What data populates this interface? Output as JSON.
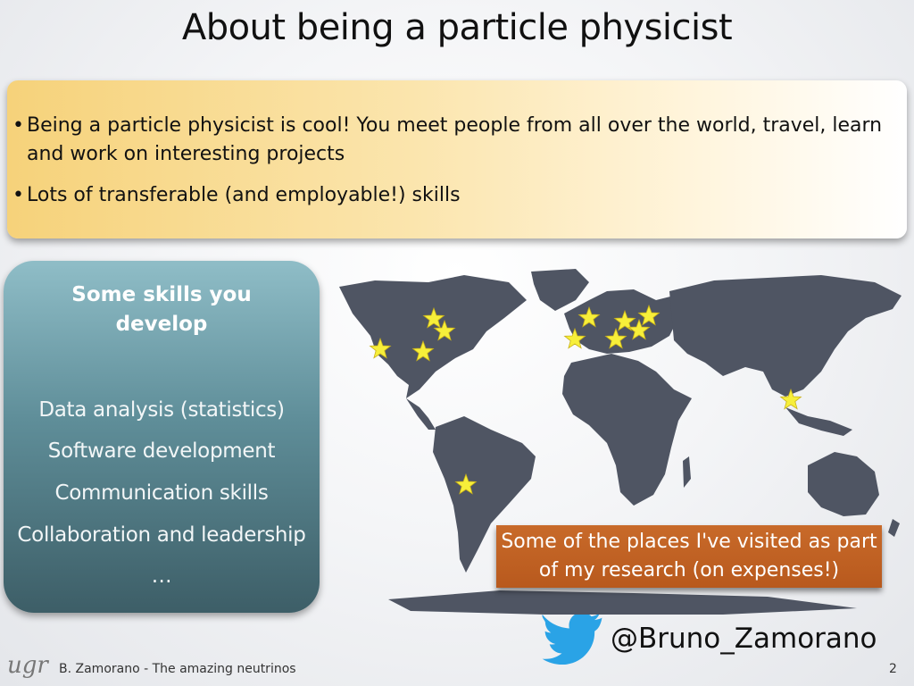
{
  "slide": {
    "title": "About being a particle physicist",
    "bullets": [
      "Being a particle physicist is cool! You meet people from all over the world, travel, learn and work on interesting projects",
      "Lots of transferable (and employable!) skills"
    ],
    "skills_box": {
      "heading": "Some skills you develop",
      "items": [
        "Data analysis (statistics)",
        "Software development",
        "Communication skills",
        "Collaboration and leadership",
        "…"
      ]
    },
    "map": {
      "caption": "Some of the places I've visited as part of my research (on expenses!)",
      "marker_icon": "star-icon",
      "marker_color": "#f7ef3a",
      "land_color": "#4f5563"
    },
    "twitter": {
      "icon": "twitter-bird-icon",
      "color": "#2aa3e6",
      "handle": "@Bruno_Zamorano"
    },
    "footer": {
      "logo": "ugr",
      "text": "B. Zamorano - The amazing neutrinos",
      "page_number": "2"
    }
  }
}
